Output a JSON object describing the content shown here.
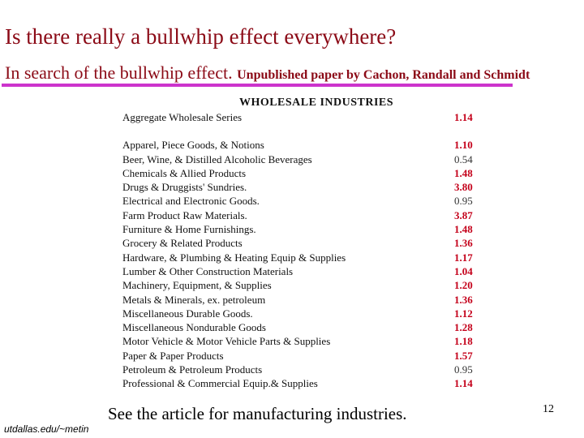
{
  "slide": {
    "title": "Is there really a bullwhip effect everywhere?",
    "subtitle_main": "In search of the bullwhip effect.",
    "subtitle_note": "Unpublished paper by Cachon, Randall and Schmidt",
    "footer_note": "See the article for manufacturing industries.",
    "page_number": "12",
    "credit": "utdallas.edu/~metin"
  },
  "table": {
    "heading": "WHOLESALE INDUSTRIES",
    "aggregate": {
      "name": "Aggregate Wholesale Series",
      "value": "1.14"
    },
    "rows": [
      {
        "name": "Apparel, Piece Goods, & Notions",
        "value": "1.10"
      },
      {
        "name": "Beer, Wine, & Distilled Alcoholic Beverages",
        "value": "0.54"
      },
      {
        "name": "Chemicals & Allied Products",
        "value": "1.48"
      },
      {
        "name": "Drugs & Druggists' Sundries.",
        "value": "3.80"
      },
      {
        "name": "Electrical and Electronic Goods.",
        "value": "0.95"
      },
      {
        "name": "Farm Product Raw Materials.",
        "value": "3.87"
      },
      {
        "name": "Furniture & Home Furnishings.",
        "value": "1.48"
      },
      {
        "name": "Grocery & Related Products",
        "value": "1.36"
      },
      {
        "name": "Hardware, & Plumbing & Heating Equip & Supplies",
        "value": "1.17"
      },
      {
        "name": "Lumber & Other Construction Materials",
        "value": "1.04"
      },
      {
        "name": "Machinery, Equipment, & Supplies",
        "value": "1.20"
      },
      {
        "name": "Metals & Minerals, ex. petroleum",
        "value": "1.36"
      },
      {
        "name": "Miscellaneous Durable Goods.",
        "value": "1.12"
      },
      {
        "name": "Miscellaneous Nondurable Goods",
        "value": "1.28"
      },
      {
        "name": "Motor Vehicle & Motor Vehicle Parts & Supplies",
        "value": "1.18"
      },
      {
        "name": "Paper & Paper Products",
        "value": "1.57"
      },
      {
        "name": "Petroleum & Petroleum Products",
        "value": "0.95"
      },
      {
        "name": "Professional & Commercial Equip.& Supplies",
        "value": "1.14"
      }
    ]
  },
  "colors": {
    "title": "#8b0a16",
    "rule": "#cc33cc",
    "value_high": "#c4001a",
    "value_low": "#333333"
  }
}
